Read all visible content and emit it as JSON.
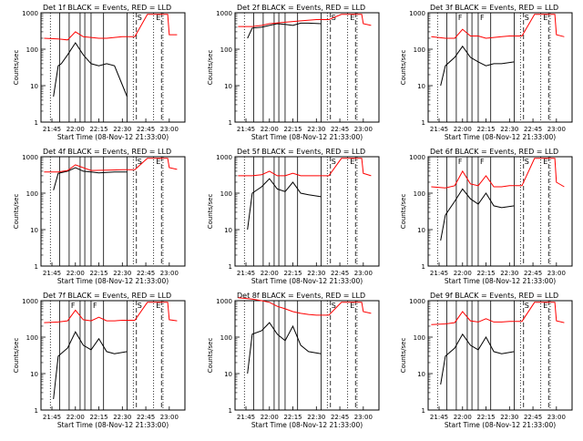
{
  "chart_data": {
    "type": "line",
    "time_range": [
      "21:38",
      "23:10"
    ],
    "x_ticks": [
      "21:45",
      "22:00",
      "22:15",
      "22:30",
      "22:45",
      "23:00"
    ],
    "xlabel": "Start Time (08-Nov-12 21:33:00)",
    "ylabel": "Counts/sec",
    "y_scale": "log",
    "ylim": [
      1,
      1000
    ],
    "y_ticks": [
      "1",
      "10",
      "100",
      "1000"
    ],
    "marker_labels": [
      "S",
      "E"
    ],
    "colors": {
      "events": "#000000",
      "lld": "#ff0000"
    },
    "vertical_markers": {
      "dotted": [
        "21:44",
        "22:37",
        "22:50",
        "22:56"
      ],
      "solid": [
        "21:50",
        "21:56",
        "22:03",
        "22:06",
        "22:10",
        "22:18",
        "22:33"
      ],
      "dashed": [
        "22:39",
        "22:55"
      ]
    },
    "panels": [
      {
        "title": "Det 1f BLACK = Events, RED = LLD",
        "F_labels": [],
        "series": [
          {
            "name": "Events",
            "t": [
              "21:46",
              "21:49",
              "21:51",
              "21:55",
              "22:00",
              "22:05",
              "22:10",
              "22:15",
              "22:20",
              "22:25",
              "22:33"
            ],
            "y": [
              5,
              35,
              40,
              70,
              150,
              70,
              40,
              35,
              40,
              35,
              5
            ]
          },
          {
            "name": "LLD",
            "t": [
              "21:40",
              "21:49",
              "21:55",
              "22:00",
              "22:05",
              "22:10",
              "22:15",
              "22:20",
              "22:25",
              "22:30",
              "22:38",
              "22:46",
              "22:52",
              "22:59",
              "23:00",
              "23:05"
            ],
            "y": [
              200,
              190,
              180,
              300,
              220,
              210,
              200,
              200,
              210,
              220,
              220,
              900,
              900,
              900,
              250,
              250
            ]
          }
        ]
      },
      {
        "title": "Det 2f BLACK = Events, RED = LLD",
        "F_labels": [],
        "series": [
          {
            "name": "Events",
            "t": [
              "21:46",
              "21:49",
              "21:55",
              "22:00",
              "22:05",
              "22:10",
              "22:15",
              "22:20",
              "22:25",
              "22:33"
            ],
            "y": [
              200,
              380,
              400,
              450,
              500,
              480,
              450,
              520,
              520,
              500
            ]
          },
          {
            "name": "LLD",
            "t": [
              "21:40",
              "21:49",
              "21:55",
              "22:00",
              "22:10",
              "22:20",
              "22:30",
              "22:38",
              "22:46",
              "22:52",
              "22:59",
              "23:00",
              "23:05"
            ],
            "y": [
              420,
              420,
              450,
              500,
              550,
              600,
              650,
              650,
              900,
              900,
              900,
              500,
              450
            ]
          }
        ]
      },
      {
        "title": "Det 3f BLACK = Events, RED = LLD",
        "F_labels": [
          "F",
          "F"
        ],
        "series": [
          {
            "name": "Events",
            "t": [
              "21:46",
              "21:49",
              "21:55",
              "22:00",
              "22:05",
              "22:10",
              "22:15",
              "22:20",
              "22:25",
              "22:33"
            ],
            "y": [
              10,
              35,
              60,
              120,
              60,
              45,
              35,
              40,
              40,
              45
            ]
          },
          {
            "name": "LLD",
            "t": [
              "21:40",
              "21:49",
              "21:55",
              "22:00",
              "22:05",
              "22:10",
              "22:15",
              "22:20",
              "22:25",
              "22:30",
              "22:38",
              "22:46",
              "22:52",
              "22:59",
              "23:00",
              "23:05"
            ],
            "y": [
              220,
              200,
              200,
              350,
              230,
              230,
              200,
              210,
              220,
              230,
              230,
              900,
              900,
              900,
              250,
              220
            ]
          }
        ]
      },
      {
        "title": "Det 4f BLACK = Events, RED = LLD",
        "F_labels": [],
        "series": [
          {
            "name": "Events",
            "t": [
              "21:46",
              "21:49",
              "21:55",
              "22:00",
              "22:05",
              "22:10",
              "22:15",
              "22:20",
              "22:25",
              "22:33"
            ],
            "y": [
              120,
              350,
              400,
              500,
              400,
              380,
              360,
              370,
              380,
              380
            ]
          },
          {
            "name": "LLD",
            "t": [
              "21:40",
              "21:49",
              "21:55",
              "22:00",
              "22:10",
              "22:20",
              "22:30",
              "22:38",
              "22:46",
              "22:52",
              "22:59",
              "23:00",
              "23:05"
            ],
            "y": [
              380,
              380,
              420,
              600,
              420,
              430,
              440,
              440,
              900,
              900,
              900,
              500,
              450
            ]
          }
        ]
      },
      {
        "title": "Det 5f BLACK = Events, RED = LLD",
        "F_labels": [],
        "series": [
          {
            "name": "Events",
            "t": [
              "21:46",
              "21:49",
              "21:55",
              "22:00",
              "22:05",
              "22:10",
              "22:15",
              "22:20",
              "22:25",
              "22:33"
            ],
            "y": [
              10,
              100,
              150,
              250,
              130,
              110,
              200,
              100,
              90,
              80
            ]
          },
          {
            "name": "LLD",
            "t": [
              "21:40",
              "21:49",
              "21:55",
              "22:00",
              "22:05",
              "22:10",
              "22:15",
              "22:20",
              "22:25",
              "22:30",
              "22:38",
              "22:46",
              "22:52",
              "22:59",
              "23:00",
              "23:05"
            ],
            "y": [
              300,
              300,
              320,
              400,
              300,
              300,
              350,
              300,
              300,
              300,
              300,
              900,
              900,
              900,
              350,
              300
            ]
          }
        ]
      },
      {
        "title": "Det 6f BLACK = Events, RED = LLD",
        "F_labels": [
          "F",
          "F"
        ],
        "series": [
          {
            "name": "Events",
            "t": [
              "21:46",
              "21:49",
              "21:55",
              "22:00",
              "22:05",
              "22:10",
              "22:15",
              "22:20",
              "22:25",
              "22:33"
            ],
            "y": [
              5,
              25,
              60,
              130,
              70,
              50,
              100,
              45,
              40,
              45
            ]
          },
          {
            "name": "LLD",
            "t": [
              "21:40",
              "21:49",
              "21:55",
              "22:00",
              "22:05",
              "22:10",
              "22:15",
              "22:20",
              "22:25",
              "22:30",
              "22:38",
              "22:46",
              "22:52",
              "22:59",
              "23:00",
              "23:05"
            ],
            "y": [
              150,
              140,
              160,
              400,
              180,
              160,
              300,
              150,
              150,
              160,
              160,
              900,
              900,
              900,
              200,
              150
            ]
          }
        ]
      },
      {
        "title": "Det 7f BLACK = Events, RED = LLD",
        "F_labels": [
          "F",
          "F"
        ],
        "series": [
          {
            "name": "Events",
            "t": [
              "21:46",
              "21:49",
              "21:55",
              "22:00",
              "22:05",
              "22:10",
              "22:15",
              "22:20",
              "22:25",
              "22:33"
            ],
            "y": [
              2,
              30,
              50,
              140,
              60,
              45,
              90,
              40,
              35,
              40
            ]
          },
          {
            "name": "LLD",
            "t": [
              "21:40",
              "21:49",
              "21:55",
              "22:00",
              "22:05",
              "22:10",
              "22:15",
              "22:20",
              "22:25",
              "22:30",
              "22:38",
              "22:46",
              "22:52",
              "22:59",
              "23:00",
              "23:05"
            ],
            "y": [
              250,
              260,
              280,
              550,
              300,
              280,
              350,
              280,
              280,
              290,
              290,
              900,
              900,
              900,
              300,
              280
            ]
          }
        ]
      },
      {
        "title": "Det 8f BLACK = Events, RED = LLD",
        "F_labels": [],
        "series": [
          {
            "name": "Events",
            "t": [
              "21:46",
              "21:49",
              "21:55",
              "22:00",
              "22:05",
              "22:10",
              "22:15",
              "22:20",
              "22:25",
              "22:33"
            ],
            "y": [
              10,
              120,
              150,
              250,
              120,
              80,
              200,
              60,
              40,
              35
            ]
          },
          {
            "name": "LLD",
            "t": [
              "21:40",
              "21:49",
              "21:55",
              "22:00",
              "22:05",
              "22:10",
              "22:15",
              "22:20",
              "22:25",
              "22:30",
              "22:38",
              "22:46",
              "22:52",
              "22:59",
              "23:00",
              "23:05"
            ],
            "y": [
              1200,
              1100,
              1000,
              900,
              700,
              600,
              500,
              450,
              420,
              400,
              400,
              900,
              900,
              900,
              500,
              450
            ]
          }
        ]
      },
      {
        "title": "Det 9f BLACK = Events, RED = LLD",
        "F_labels": [],
        "series": [
          {
            "name": "Events",
            "t": [
              "21:46",
              "21:49",
              "21:55",
              "22:00",
              "22:05",
              "22:10",
              "22:15",
              "22:20",
              "22:25",
              "22:33"
            ],
            "y": [
              5,
              30,
              50,
              120,
              60,
              45,
              100,
              40,
              35,
              40
            ]
          },
          {
            "name": "LLD",
            "t": [
              "21:40",
              "21:49",
              "21:55",
              "22:00",
              "22:05",
              "22:10",
              "22:15",
              "22:20",
              "22:25",
              "22:30",
              "22:38",
              "22:46",
              "22:52",
              "22:59",
              "23:00",
              "23:05"
            ],
            "y": [
              220,
              230,
              250,
              500,
              280,
              260,
              320,
              260,
              260,
              270,
              270,
              900,
              900,
              900,
              280,
              250
            ]
          }
        ]
      }
    ]
  }
}
